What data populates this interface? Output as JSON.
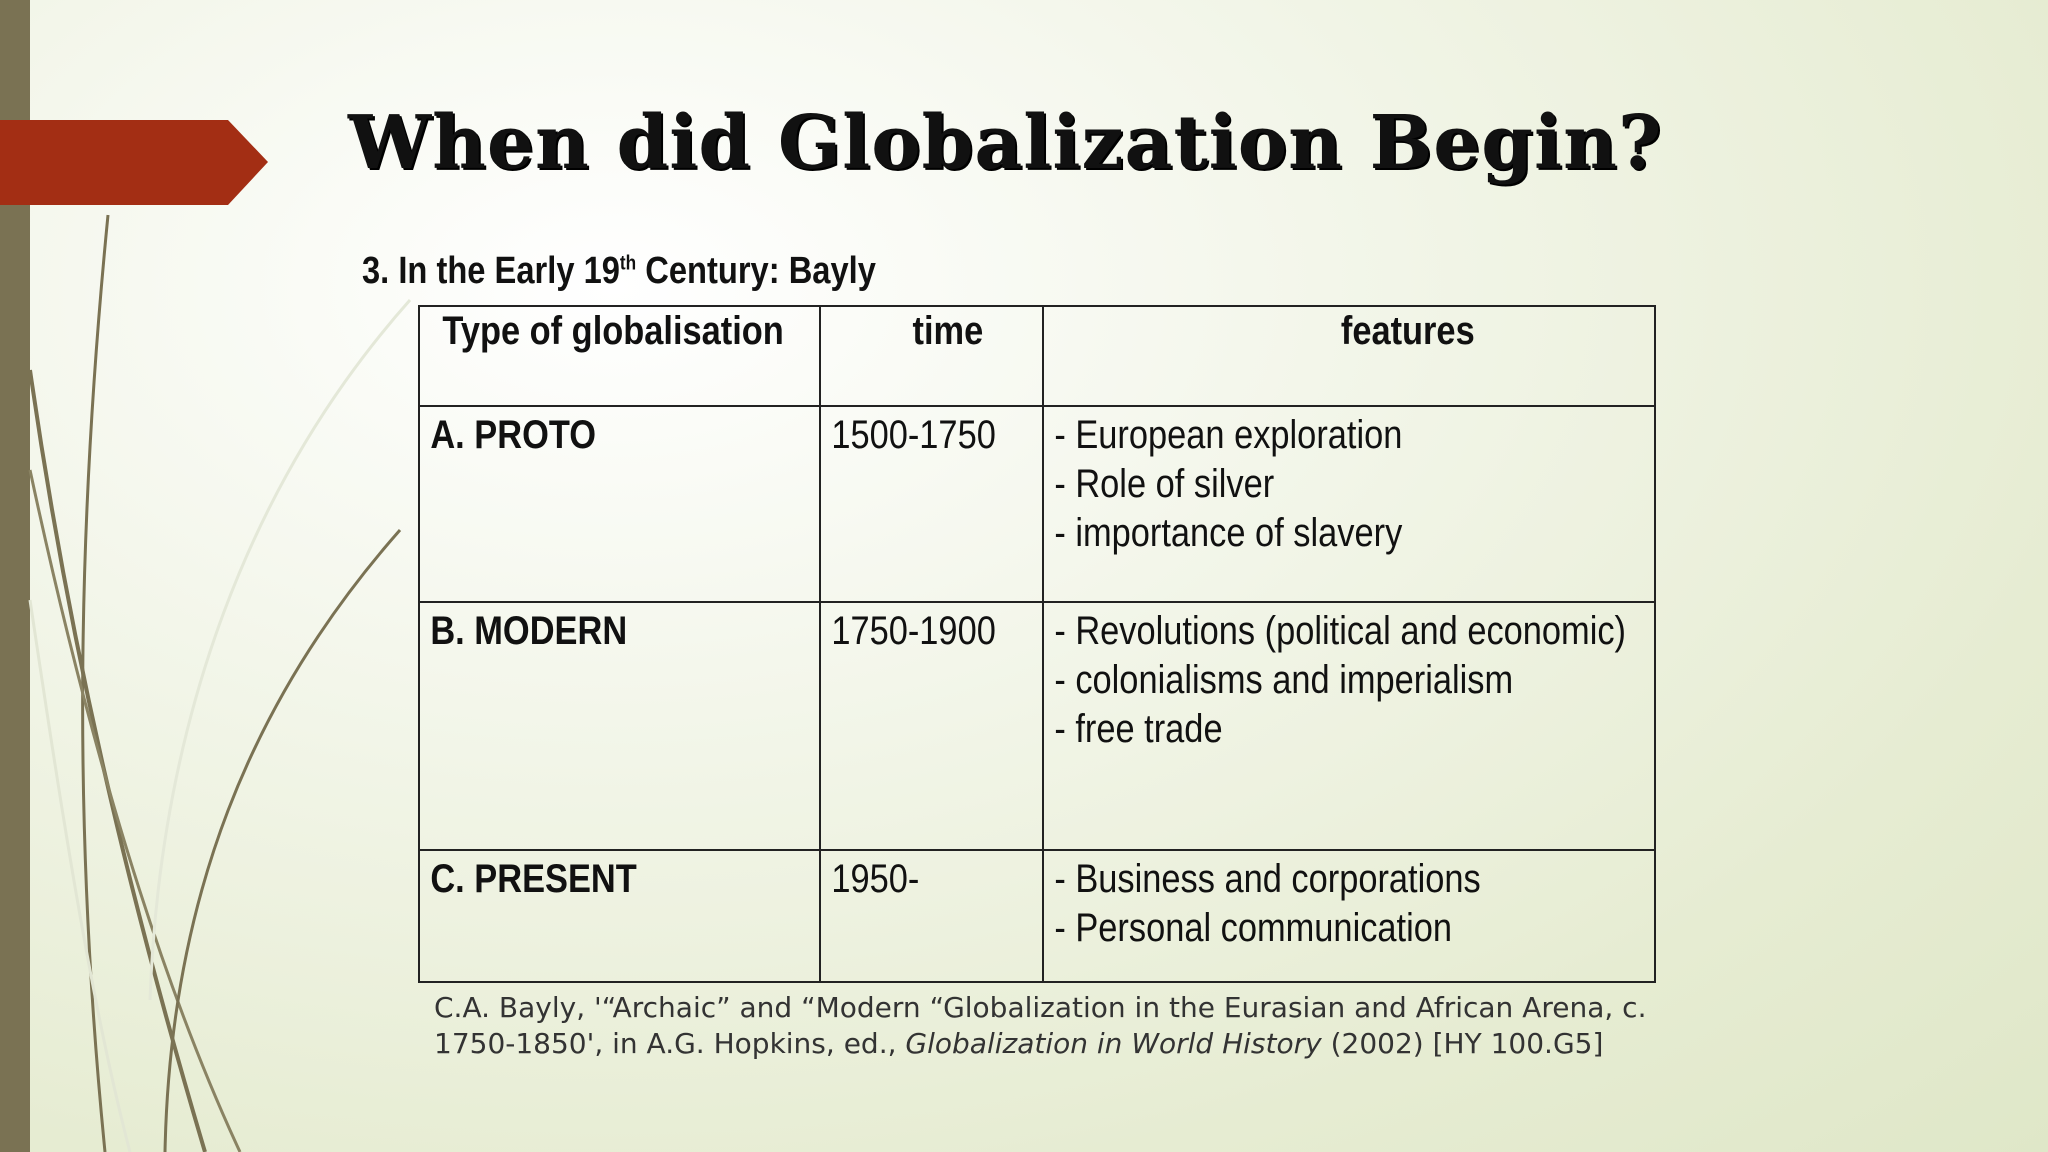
{
  "slide": {
    "title": "When did Globalization Begin?",
    "subtitle_prefix": "3. In the Early 19",
    "subtitle_sup": "th",
    "subtitle_suffix": " Century: Bayly"
  },
  "table": {
    "headers": [
      "Type of globalisation",
      "time",
      "features"
    ],
    "rows": [
      {
        "type": "A. PROTO",
        "time": "1500-1750",
        "features": [
          "- European exploration",
          "- Role of silver",
          "- importance of slavery"
        ]
      },
      {
        "type": "B. MODERN",
        "time": "1750-1900",
        "features": [
          "- Revolutions (political and economic)",
          "- colonialisms and imperialism",
          "- free trade"
        ]
      },
      {
        "type": "C. PRESENT",
        "time": "1950-",
        "features": [
          "- Business and corporations",
          "- Personal communication"
        ]
      }
    ]
  },
  "citation": {
    "before": "C.A. Bayly, '“Archaic” and “Modern “Globalization in the Eurasian and African Arena, c. 1750-1850', in A.G. Hopkins, ed., ",
    "book": "Globalization in World History",
    "after": " (2002) [HY 100.G5]"
  },
  "colors": {
    "accent": "#a32e14",
    "sidebar": "#7a7253",
    "lines": "#7a7253"
  }
}
